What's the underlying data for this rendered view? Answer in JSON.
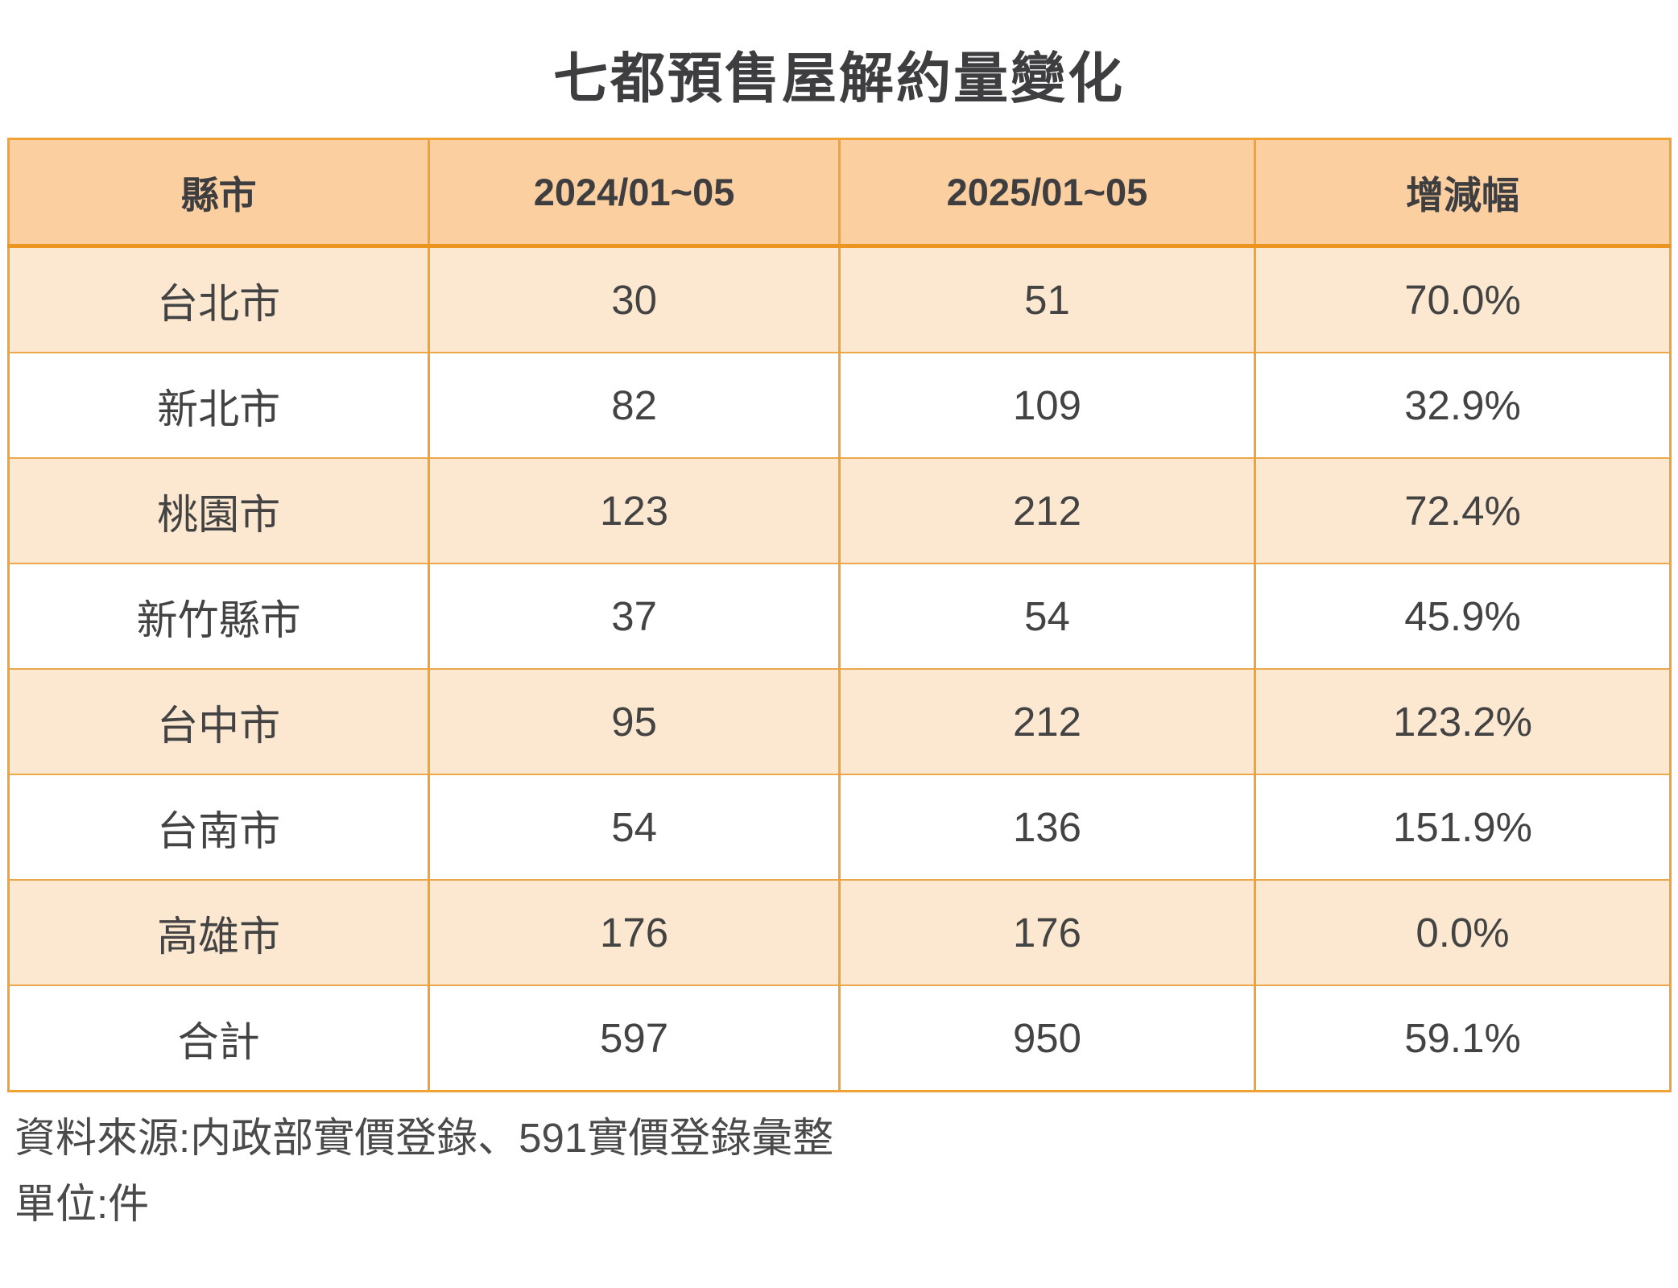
{
  "title": "七都預售屋解約量變化",
  "chart_data": {
    "type": "table",
    "title": "七都預售屋解約量變化",
    "columns": [
      "縣市",
      "2024/01~05",
      "2025/01~05",
      "增減幅"
    ],
    "rows": [
      [
        "台北市",
        "30",
        "51",
        "70.0%"
      ],
      [
        "新北市",
        "82",
        "109",
        "32.9%"
      ],
      [
        "桃園市",
        "123",
        "212",
        "72.4%"
      ],
      [
        "新竹縣市",
        "37",
        "54",
        "45.9%"
      ],
      [
        "台中市",
        "95",
        "212",
        "123.2%"
      ],
      [
        "台南市",
        "54",
        "136",
        "151.9%"
      ],
      [
        "高雄市",
        "176",
        "176",
        "0.0%"
      ],
      [
        "合計",
        "597",
        "950",
        "59.1%"
      ]
    ],
    "unit": "件",
    "layout_hints": {
      "alternating_row_fill": [
        "#fce8d1",
        "#ffffff"
      ],
      "header_fill": "#fbcfa0",
      "grid": "on"
    }
  },
  "footer": {
    "source": "資料來源:内政部實價登錄、591實價登錄彙整",
    "unit": "單位:件"
  },
  "colors": {
    "border_orange": "#f0a232",
    "header_separator_orange": "#ec9420",
    "header_background": "#fbcfa0",
    "row_peach_background": "#fce8d1",
    "row_white_background": "#ffffff",
    "text_dark_gray": "#3e3e40"
  }
}
